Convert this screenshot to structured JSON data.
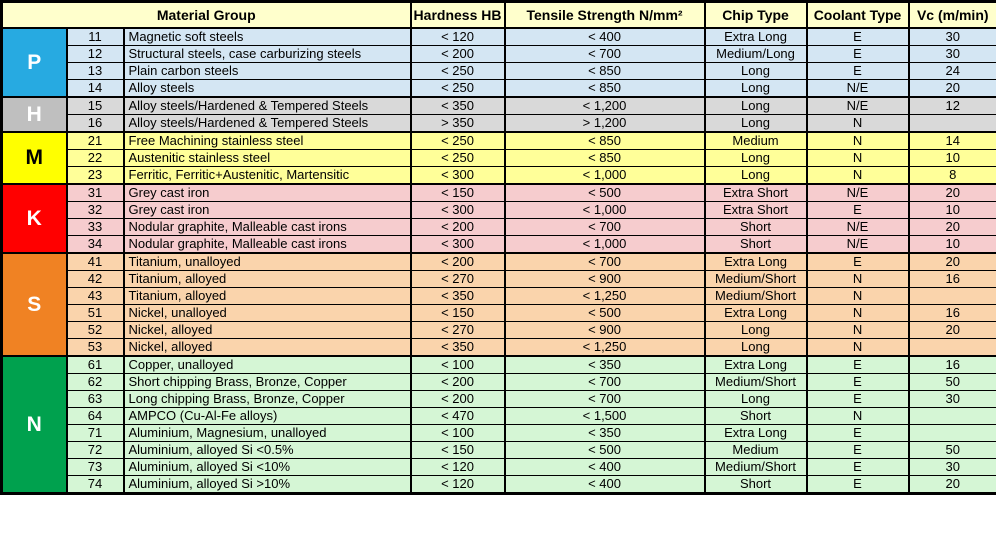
{
  "header": {
    "material_group": "Material Group",
    "hardness": "Hardness HB",
    "tensile": "Tensile Strength N/mm²",
    "chip": "Chip Type",
    "coolant": "Coolant Type",
    "vc": "Vc (m/min)"
  },
  "colors": {
    "header_bg": "#FFFFCC",
    "border": "#000000"
  },
  "groups": [
    {
      "letter": "P",
      "letter_bg": "#27AAE1",
      "letter_color": "#FFFFFF",
      "row_bg": "#D4E6F3",
      "rows": [
        {
          "code": "11",
          "material": "Magnetic soft steels",
          "hardness": "< 120",
          "tensile": "< 400",
          "chip": "Extra Long",
          "coolant": "E",
          "vc": "30"
        },
        {
          "code": "12",
          "material": "Structural steels, case carburizing steels",
          "hardness": "< 200",
          "tensile": "< 700",
          "chip": "Medium/Long",
          "coolant": "E",
          "vc": "30"
        },
        {
          "code": "13",
          "material": "Plain carbon steels",
          "hardness": "< 250",
          "tensile": "< 850",
          "chip": "Long",
          "coolant": "E",
          "vc": "24"
        },
        {
          "code": "14",
          "material": "Alloy steels",
          "hardness": "< 250",
          "tensile": "< 850",
          "chip": "Long",
          "coolant": "N/E",
          "vc": "20"
        }
      ]
    },
    {
      "letter": "H",
      "letter_bg": "#BFBFBF",
      "letter_color": "#FFFFFF",
      "row_bg": "#D9D9D9",
      "rows": [
        {
          "code": "15",
          "material": "Alloy steels/Hardened & Tempered Steels",
          "hardness": "< 350",
          "tensile": "< 1,200",
          "chip": "Long",
          "coolant": "N/E",
          "vc": "12"
        },
        {
          "code": "16",
          "material": "Alloy steels/Hardened & Tempered Steels",
          "hardness": "> 350",
          "tensile": "> 1,200",
          "chip": "Long",
          "coolant": "N",
          "vc": ""
        }
      ]
    },
    {
      "letter": "M",
      "letter_bg": "#FFFF00",
      "letter_color": "#000000",
      "row_bg": "#FFFF99",
      "rows": [
        {
          "code": "21",
          "material": "Free Machining stainless steel",
          "hardness": "< 250",
          "tensile": "< 850",
          "chip": "Medium",
          "coolant": "N",
          "vc": "14"
        },
        {
          "code": "22",
          "material": "Austenitic stainless steel",
          "hardness": "< 250",
          "tensile": "< 850",
          "chip": "Long",
          "coolant": "N",
          "vc": "10"
        },
        {
          "code": "23",
          "material": "Ferritic, Ferritic+Austenitic, Martensitic",
          "hardness": "< 300",
          "tensile": "< 1,000",
          "chip": "Long",
          "coolant": "N",
          "vc": "8"
        }
      ]
    },
    {
      "letter": "K",
      "letter_bg": "#FF0000",
      "letter_color": "#FFFFFF",
      "row_bg": "#F6CCCE",
      "rows": [
        {
          "code": "31",
          "material": "Grey cast iron",
          "hardness": "< 150",
          "tensile": "< 500",
          "chip": "Extra Short",
          "coolant": "N/E",
          "vc": "20"
        },
        {
          "code": "32",
          "material": "Grey cast iron",
          "hardness": "< 300",
          "tensile": "< 1,000",
          "chip": "Extra Short",
          "coolant": "E",
          "vc": "10"
        },
        {
          "code": "33",
          "material": "Nodular graphite, Malleable cast irons",
          "hardness": "< 200",
          "tensile": "< 700",
          "chip": "Short",
          "coolant": "N/E",
          "vc": "20"
        },
        {
          "code": "34",
          "material": "Nodular graphite, Malleable cast irons",
          "hardness": "< 300",
          "tensile": "< 1,000",
          "chip": "Short",
          "coolant": "N/E",
          "vc": "10"
        }
      ]
    },
    {
      "letter": "S",
      "letter_bg": "#F08223",
      "letter_color": "#FFFFFF",
      "row_bg": "#FAD4AC",
      "rows": [
        {
          "code": "41",
          "material": "Titanium, unalloyed",
          "hardness": "< 200",
          "tensile": "< 700",
          "chip": "Extra Long",
          "coolant": "E",
          "vc": "20"
        },
        {
          "code": "42",
          "material": "Titanium, alloyed",
          "hardness": "< 270",
          "tensile": "< 900",
          "chip": "Medium/Short",
          "coolant": "N",
          "vc": "16"
        },
        {
          "code": "43",
          "material": "Titanium, alloyed",
          "hardness": "< 350",
          "tensile": "< 1,250",
          "chip": "Medium/Short",
          "coolant": "N",
          "vc": ""
        },
        {
          "code": "51",
          "material": "Nickel, unalloyed",
          "hardness": "< 150",
          "tensile": "< 500",
          "chip": "Extra Long",
          "coolant": "N",
          "vc": "16"
        },
        {
          "code": "52",
          "material": "Nickel, alloyed",
          "hardness": "< 270",
          "tensile": "< 900",
          "chip": "Long",
          "coolant": "N",
          "vc": "20"
        },
        {
          "code": "53",
          "material": "Nickel, alloyed",
          "hardness": "< 350",
          "tensile": "< 1,250",
          "chip": "Long",
          "coolant": "N",
          "vc": ""
        }
      ]
    },
    {
      "letter": "N",
      "letter_bg": "#00A14E",
      "letter_color": "#FFFFFF",
      "row_bg": "#D5F6D5",
      "rows": [
        {
          "code": "61",
          "material": "Copper, unalloyed",
          "hardness": "< 100",
          "tensile": "< 350",
          "chip": "Extra Long",
          "coolant": "E",
          "vc": "16"
        },
        {
          "code": "62",
          "material": "Short chipping Brass, Bronze, Copper",
          "hardness": "< 200",
          "tensile": "< 700",
          "chip": "Medium/Short",
          "coolant": "E",
          "vc": "50"
        },
        {
          "code": "63",
          "material": "Long chipping Brass, Bronze, Copper",
          "hardness": "< 200",
          "tensile": "< 700",
          "chip": "Long",
          "coolant": "E",
          "vc": "30"
        },
        {
          "code": "64",
          "material": "AMPCO (Cu-Al-Fe alloys)",
          "hardness": "< 470",
          "tensile": "< 1,500",
          "chip": "Short",
          "coolant": "N",
          "vc": ""
        },
        {
          "code": "71",
          "material": "Aluminium, Magnesium, unalloyed",
          "hardness": "< 100",
          "tensile": "< 350",
          "chip": "Extra Long",
          "coolant": "E",
          "vc": ""
        },
        {
          "code": "72",
          "material": "Aluminium, alloyed Si <0.5%",
          "hardness": "< 150",
          "tensile": "< 500",
          "chip": "Medium",
          "coolant": "E",
          "vc": "50"
        },
        {
          "code": "73",
          "material": "Aluminium, alloyed Si <10%",
          "hardness": "< 120",
          "tensile": "< 400",
          "chip": "Medium/Short",
          "coolant": "E",
          "vc": "30"
        },
        {
          "code": "74",
          "material": "Aluminium, alloyed Si >10%",
          "hardness": "< 120",
          "tensile": "< 400",
          "chip": "Short",
          "coolant": "E",
          "vc": "20"
        }
      ]
    }
  ]
}
